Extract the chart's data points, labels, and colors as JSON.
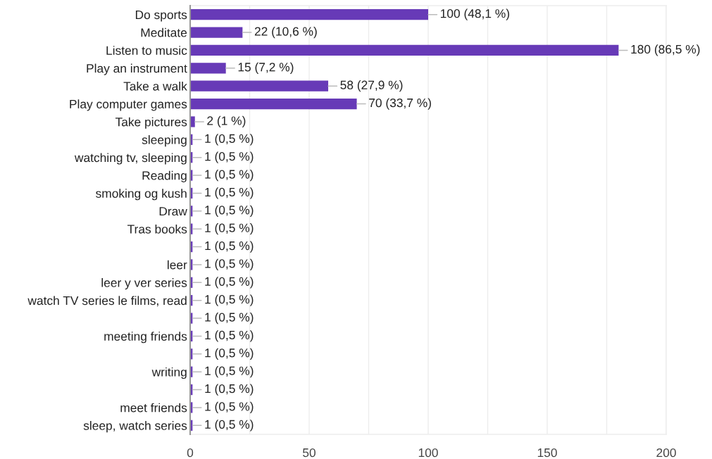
{
  "chart_data": {
    "type": "bar",
    "orientation": "horizontal",
    "categories": [
      "Do sports",
      "Meditate",
      "Listen to music",
      "Play an instrument",
      "Take a walk",
      "Play computer games",
      "Take pictures",
      "sleeping",
      "watching tv, sleeping",
      "Reading",
      "smoking og kush",
      "Draw",
      "Tras books",
      null,
      "leer",
      "leer y ver series",
      "watch TV series le films, read",
      null,
      "meeting friends",
      null,
      "writing",
      null,
      "meet friends",
      "sleep, watch series"
    ],
    "values": [
      100,
      22,
      180,
      15,
      58,
      70,
      2,
      1,
      1,
      1,
      1,
      1,
      1,
      1,
      1,
      1,
      1,
      1,
      1,
      1,
      1,
      1,
      1,
      1
    ],
    "value_labels": [
      "100 (48,1 %)",
      "22 (10,6 %)",
      "180 (86,5 %)",
      "15 (7,2 %)",
      "58 (27,9 %)",
      "70 (33,7 %)",
      "2 (1 %)",
      "1 (0,5 %)",
      "1 (0,5 %)",
      "1 (0,5 %)",
      "1 (0,5 %)",
      "1 (0,5 %)",
      "1 (0,5 %)",
      "1 (0,5 %)",
      "1 (0,5 %)",
      "1 (0,5 %)",
      "1 (0,5 %)",
      "1 (0,5 %)",
      "1 (0,5 %)",
      "1 (0,5 %)",
      "1 (0,5 %)",
      "1 (0,5 %)",
      "1 (0,5 %)",
      "1 (0,5 %)"
    ],
    "color": "#673ab7",
    "xlim": [
      0,
      200
    ],
    "xticks": [
      0,
      {
        "value": 25,
        "label": null
      },
      50,
      {
        "value": 75,
        "label": null
      },
      100,
      {
        "value": 125,
        "label": null
      },
      150,
      {
        "value": 175,
        "label": null
      },
      200
    ],
    "grid": "x"
  }
}
